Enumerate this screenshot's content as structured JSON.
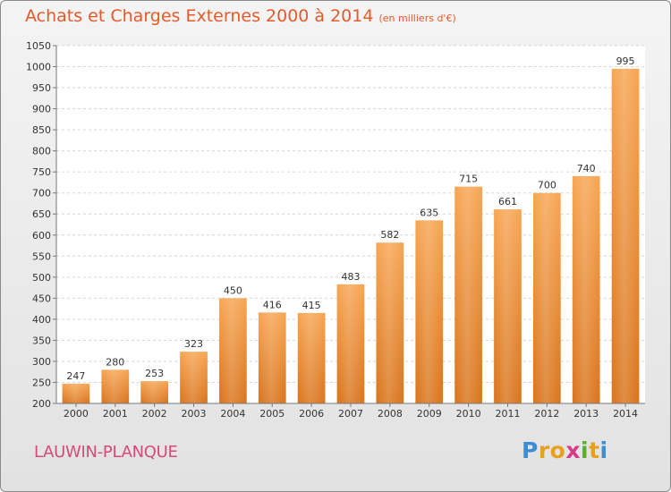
{
  "title": "Achats et Charges Externes 2000 à 2014",
  "subtitle": "(en milliers d'€)",
  "town": "LAUWIN-PLANQUE",
  "logo": {
    "letters": [
      "P",
      "r",
      "o",
      "x",
      "i",
      "t",
      "i"
    ],
    "colors": [
      "#3a8ed8",
      "#e8a020",
      "#e8a020",
      "#d83a8a",
      "#58b030",
      "#e8a020",
      "#3a8ed8"
    ]
  },
  "chart_data": {
    "type": "bar",
    "categories": [
      "2000",
      "2001",
      "2002",
      "2003",
      "2004",
      "2005",
      "2006",
      "2007",
      "2008",
      "2009",
      "2010",
      "2011",
      "2012",
      "2013",
      "2014"
    ],
    "values": [
      247,
      280,
      253,
      323,
      450,
      416,
      415,
      483,
      582,
      635,
      715,
      661,
      700,
      740,
      995
    ],
    "ylim": [
      200,
      1050
    ],
    "yticks": [
      200,
      250,
      300,
      350,
      400,
      450,
      500,
      550,
      600,
      650,
      700,
      750,
      800,
      850,
      900,
      950,
      1000,
      1050
    ],
    "grid": true,
    "bar_color": "#f0923a"
  }
}
